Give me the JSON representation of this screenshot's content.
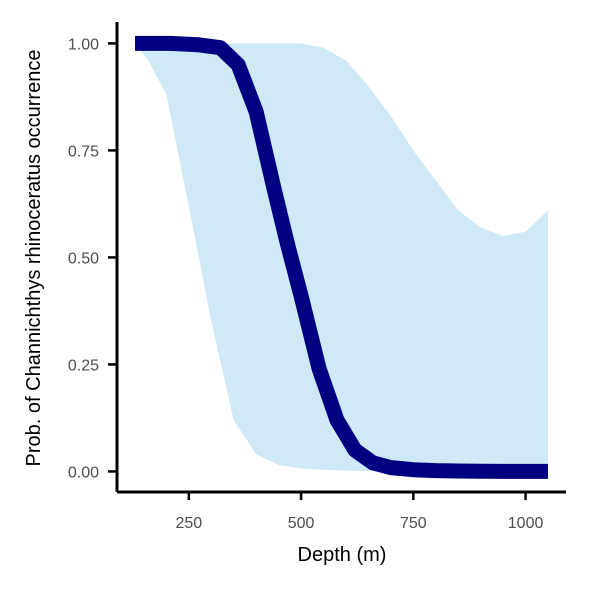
{
  "chart_data": {
    "type": "line",
    "xlabel": "Depth (m)",
    "ylabel": "Prob. of  Channichthys rhinoceratus  occurrence",
    "xlim": [
      90,
      1090
    ],
    "ylim": [
      -0.048,
      1.05
    ],
    "x_ticks": [
      250,
      500,
      750,
      1000
    ],
    "x_tick_labels": [
      "250",
      "500",
      "750",
      "1000"
    ],
    "y_ticks": [
      0.0,
      0.25,
      0.5,
      0.75,
      1.0
    ],
    "y_tick_labels": [
      "0.00",
      "0.25",
      "0.50",
      "0.75",
      "1.00"
    ],
    "grid": false,
    "series": [
      {
        "kind": "line",
        "color": "#000080",
        "x": [
          130,
          160,
          210,
          270,
          320,
          360,
          400,
          440,
          470,
          500,
          540,
          580,
          620,
          660,
          700,
          750,
          800,
          850,
          900,
          950,
          1000,
          1050
        ],
        "y": [
          1.0,
          1.0,
          1.0,
          0.997,
          0.99,
          0.95,
          0.84,
          0.66,
          0.53,
          0.41,
          0.24,
          0.12,
          0.05,
          0.02,
          0.009,
          0.004,
          0.002,
          0.001,
          0.0005,
          0.0002,
          0.0001,
          0.0001
        ]
      },
      {
        "kind": "band",
        "color": "#cfe9f6",
        "x": [
          130,
          160,
          200,
          250,
          300,
          350,
          400,
          450,
          500,
          550,
          600,
          650,
          700,
          750,
          800,
          850,
          900,
          950,
          1000,
          1050
        ],
        "lower": [
          1.0,
          0.96,
          0.88,
          0.62,
          0.35,
          0.12,
          0.04,
          0.015,
          0.007,
          0.004,
          0.002,
          0.001,
          0.001,
          0.0,
          0.0,
          0.0,
          0.0,
          0.0,
          0.0,
          0.0
        ],
        "upper": [
          1.0,
          1.0,
          1.0,
          1.0,
          1.0,
          1.0,
          1.0,
          1.0,
          1.0,
          0.99,
          0.96,
          0.9,
          0.83,
          0.75,
          0.68,
          0.61,
          0.57,
          0.55,
          0.56,
          0.61
        ]
      }
    ]
  }
}
